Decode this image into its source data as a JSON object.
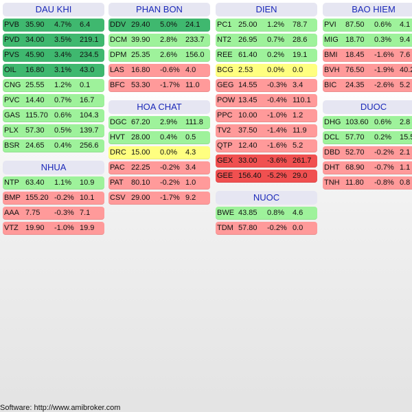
{
  "colors": {
    "strong_up": "#3fb86f",
    "up": "#9ef29b",
    "flat": "#ffff80",
    "down": "#ff9a9a",
    "strong_down": "#f05050",
    "header_bg": "#e6e6f2",
    "header_text": "#1a28b8"
  },
  "columns": [
    [
      {
        "name": "DAU KHI",
        "rows": [
          {
            "sym": "PVB",
            "price": "35.90",
            "chg": "4.7%",
            "vol": "6.4",
            "tone": "strong_up"
          },
          {
            "sym": "PVD",
            "price": "34.00",
            "chg": "3.5%",
            "vol": "219.1",
            "tone": "strong_up"
          },
          {
            "sym": "PVS",
            "price": "45.90",
            "chg": "3.4%",
            "vol": "234.5",
            "tone": "strong_up"
          },
          {
            "sym": "OIL",
            "price": "16.80",
            "chg": "3.1%",
            "vol": "43.0",
            "tone": "strong_up"
          },
          {
            "sym": "CNG",
            "price": "25.55",
            "chg": "1.2%",
            "vol": "0.1",
            "tone": "up"
          },
          {
            "sym": "PVC",
            "price": "14.40",
            "chg": "0.7%",
            "vol": "16.7",
            "tone": "up"
          },
          {
            "sym": "GAS",
            "price": "115.70",
            "chg": "0.6%",
            "vol": "104.3",
            "tone": "up"
          },
          {
            "sym": "PLX",
            "price": "57.30",
            "chg": "0.5%",
            "vol": "139.7",
            "tone": "up"
          },
          {
            "sym": "BSR",
            "price": "24.65",
            "chg": "0.4%",
            "vol": "256.6",
            "tone": "up"
          }
        ]
      },
      {
        "name": "NHUA",
        "rows": [
          {
            "sym": "NTP",
            "price": "63.40",
            "chg": "1.1%",
            "vol": "10.9",
            "tone": "up"
          },
          {
            "sym": "BMP",
            "price": "155.20",
            "chg": "-0.2%",
            "vol": "10.1",
            "tone": "down"
          },
          {
            "sym": "AAA",
            "price": "7.75",
            "chg": "-0.3%",
            "vol": "7.1",
            "tone": "down"
          },
          {
            "sym": "VTZ",
            "price": "19.90",
            "chg": "-1.0%",
            "vol": "19.9",
            "tone": "down"
          }
        ]
      }
    ],
    [
      {
        "name": "PHAN BON",
        "rows": [
          {
            "sym": "DDV",
            "price": "29.40",
            "chg": "5.0%",
            "vol": "24.1",
            "tone": "strong_up"
          },
          {
            "sym": "DCM",
            "price": "39.90",
            "chg": "2.8%",
            "vol": "233.7",
            "tone": "up"
          },
          {
            "sym": "DPM",
            "price": "25.35",
            "chg": "2.6%",
            "vol": "156.0",
            "tone": "up"
          },
          {
            "sym": "LAS",
            "price": "16.80",
            "chg": "-0.6%",
            "vol": "4.0",
            "tone": "down"
          },
          {
            "sym": "BFC",
            "price": "53.30",
            "chg": "-1.7%",
            "vol": "11.0",
            "tone": "down"
          }
        ]
      },
      {
        "name": "HOA CHAT",
        "rows": [
          {
            "sym": "DGC",
            "price": "67.20",
            "chg": "2.9%",
            "vol": "111.8",
            "tone": "up"
          },
          {
            "sym": "HVT",
            "price": "28.00",
            "chg": "0.4%",
            "vol": "0.5",
            "tone": "up"
          },
          {
            "sym": "DRC",
            "price": "15.00",
            "chg": "0.0%",
            "vol": "4.3",
            "tone": "flat"
          },
          {
            "sym": "PAC",
            "price": "22.25",
            "chg": "-0.2%",
            "vol": "3.4",
            "tone": "down"
          },
          {
            "sym": "PAT",
            "price": "80.10",
            "chg": "-0.2%",
            "vol": "1.0",
            "tone": "down"
          },
          {
            "sym": "CSV",
            "price": "29.00",
            "chg": "-1.7%",
            "vol": "9.2",
            "tone": "down"
          }
        ]
      }
    ],
    [
      {
        "name": "DIEN",
        "rows": [
          {
            "sym": "PC1",
            "price": "25.00",
            "chg": "1.2%",
            "vol": "78.7",
            "tone": "up"
          },
          {
            "sym": "NT2",
            "price": "26.95",
            "chg": "0.7%",
            "vol": "28.6",
            "tone": "up"
          },
          {
            "sym": "REE",
            "price": "61.40",
            "chg": "0.2%",
            "vol": "19.1",
            "tone": "up"
          },
          {
            "sym": "BCG",
            "price": "2.53",
            "chg": "0.0%",
            "vol": "0.0",
            "tone": "flat"
          },
          {
            "sym": "GEG",
            "price": "14.55",
            "chg": "-0.3%",
            "vol": "3.4",
            "tone": "down"
          },
          {
            "sym": "POW",
            "price": "13.45",
            "chg": "-0.4%",
            "vol": "110.1",
            "tone": "down"
          },
          {
            "sym": "PPC",
            "price": "10.00",
            "chg": "-1.0%",
            "vol": "1.2",
            "tone": "down"
          },
          {
            "sym": "TV2",
            "price": "37.50",
            "chg": "-1.4%",
            "vol": "11.9",
            "tone": "down"
          },
          {
            "sym": "QTP",
            "price": "12.40",
            "chg": "-1.6%",
            "vol": "5.2",
            "tone": "down"
          },
          {
            "sym": "GEX",
            "price": "33.00",
            "chg": "-3.6%",
            "vol": "261.7",
            "tone": "strong_down"
          },
          {
            "sym": "GEE",
            "price": "156.40",
            "chg": "-5.2%",
            "vol": "29.0",
            "tone": "strong_down"
          }
        ]
      },
      {
        "name": "NUOC",
        "rows": [
          {
            "sym": "BWE",
            "price": "43.85",
            "chg": "0.8%",
            "vol": "4.6",
            "tone": "up"
          },
          {
            "sym": "TDM",
            "price": "57.80",
            "chg": "-0.2%",
            "vol": "0.0",
            "tone": "down"
          }
        ]
      }
    ],
    [
      {
        "name": "BAO HIEM",
        "rows": [
          {
            "sym": "PVI",
            "price": "87.50",
            "chg": "0.6%",
            "vol": "4.1",
            "tone": "up"
          },
          {
            "sym": "MIG",
            "price": "18.70",
            "chg": "0.3%",
            "vol": "9.4",
            "tone": "up"
          },
          {
            "sym": "BMI",
            "price": "18.45",
            "chg": "-1.6%",
            "vol": "7.6",
            "tone": "down"
          },
          {
            "sym": "BVH",
            "price": "76.50",
            "chg": "-1.9%",
            "vol": "40.2",
            "tone": "down"
          },
          {
            "sym": "BIC",
            "price": "24.35",
            "chg": "-2.6%",
            "vol": "5.2",
            "tone": "down"
          }
        ]
      },
      {
        "name": "DUOC",
        "rows": [
          {
            "sym": "DHG",
            "price": "103.60",
            "chg": "0.6%",
            "vol": "2.8",
            "tone": "up"
          },
          {
            "sym": "DCL",
            "price": "57.70",
            "chg": "0.2%",
            "vol": "15.5",
            "tone": "up"
          },
          {
            "sym": "DBD",
            "price": "52.70",
            "chg": "-0.2%",
            "vol": "2.1",
            "tone": "down"
          },
          {
            "sym": "DHT",
            "price": "68.90",
            "chg": "-0.7%",
            "vol": "1.1",
            "tone": "down"
          },
          {
            "sym": "TNH",
            "price": "11.80",
            "chg": "-0.8%",
            "vol": "0.8",
            "tone": "down"
          }
        ]
      }
    ]
  ],
  "footer": "Software: http://www.amibroker.com"
}
